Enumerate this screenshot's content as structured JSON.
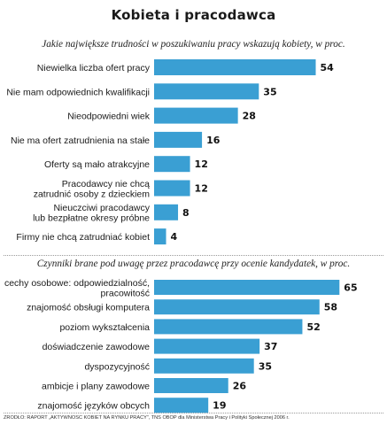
{
  "title": "Kobieta i pracodawca",
  "source": "ŹRÓDŁO: RAPORT „AKTYWNOŚĆ KOBIET NA RYNKU PRACY”, TNS OBOP dla Ministerstwa Pracy i Polityki Społecznej 2006 r.",
  "colors": {
    "bar": "#3a9fd3"
  },
  "chart_data": [
    {
      "type": "bar",
      "orientation": "horizontal",
      "subtitle": "Jakie największe trudności w poszukiwaniu pracy wskazują kobiety, w proc.",
      "categories": [
        [
          "Niewielka liczba ofert pracy"
        ],
        [
          "Nie mam odpowiednich kwalifikacji"
        ],
        [
          "Nieodpowiedni wiek"
        ],
        [
          "Nie ma ofert zatrudnienia na stałe"
        ],
        [
          "Oferty są mało atrakcyjne"
        ],
        [
          "Pracodawcy nie chcą",
          "zatrudnić osoby z dzieckiem"
        ],
        [
          "Nieuczciwi pracodawcy",
          "lub bezpłatne okresy próbne"
        ],
        [
          "Firmy nie chcą zatrudniać kobiet"
        ]
      ],
      "values": [
        54,
        35,
        28,
        16,
        12,
        12,
        8,
        4
      ],
      "ylim": [
        0,
        65
      ],
      "grid": false
    },
    {
      "type": "bar",
      "orientation": "horizontal",
      "subtitle": "Czynniki brane pod uwagę przez pracodawcę przy ocenie kandydatek, w proc.",
      "categories": [
        [
          "cechy osobowe: odpowiedzialność,",
          "pracowitość"
        ],
        [
          "znajomość obsługi komputera"
        ],
        [
          "poziom wykształcenia"
        ],
        [
          "doświadczenie zawodowe"
        ],
        [
          "dyspozycyjność"
        ],
        [
          "ambicje i plany zawodowe"
        ],
        [
          "znajomość języków obcych"
        ]
      ],
      "values": [
        65,
        58,
        52,
        37,
        35,
        26,
        19
      ],
      "ylim": [
        0,
        65
      ],
      "grid": false
    }
  ]
}
